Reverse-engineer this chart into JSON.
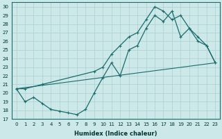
{
  "xlabel": "Humidex (Indice chaleur)",
  "ylabel": "",
  "xlim": [
    -0.5,
    23.5
  ],
  "ylim": [
    17,
    30.5
  ],
  "yticks": [
    17,
    18,
    19,
    20,
    21,
    22,
    23,
    24,
    25,
    26,
    27,
    28,
    29,
    30
  ],
  "xticks": [
    0,
    1,
    2,
    3,
    4,
    5,
    6,
    7,
    8,
    9,
    10,
    11,
    12,
    13,
    14,
    15,
    16,
    17,
    18,
    19,
    20,
    21,
    22,
    23
  ],
  "bg_color": "#cde8e8",
  "grid_color": "#aacfcf",
  "line_color": "#1a6b6b",
  "line1_x": [
    0,
    1,
    2,
    3,
    4,
    5,
    6,
    7,
    8,
    9,
    10,
    11,
    12,
    13,
    14,
    15,
    16,
    17,
    18,
    19,
    20,
    21,
    22,
    23
  ],
  "line1_y": [
    20.5,
    19.0,
    19.5,
    18.8,
    18.1,
    17.9,
    17.7,
    17.5,
    18.1,
    20.0,
    21.8,
    23.5,
    22.0,
    25.0,
    25.5,
    27.5,
    29.0,
    28.3,
    29.5,
    26.5,
    27.5,
    26.0,
    25.5,
    23.5
  ],
  "line2_x": [
    0,
    1,
    3,
    9,
    10,
    11,
    12,
    13,
    14,
    15,
    16,
    17,
    18,
    19,
    20,
    21,
    22,
    23
  ],
  "line2_y": [
    20.5,
    20.5,
    21.0,
    22.5,
    23.0,
    24.5,
    25.5,
    26.5,
    27.0,
    28.5,
    30.0,
    29.5,
    28.5,
    29.0,
    27.5,
    26.5,
    25.5,
    23.5
  ],
  "line3_x": [
    0,
    23
  ],
  "line3_y": [
    20.5,
    23.5
  ]
}
